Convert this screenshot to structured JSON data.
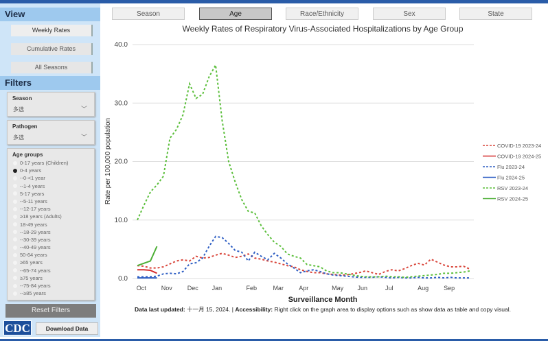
{
  "sidebar": {
    "view_title": "View",
    "view_buttons": [
      "Weekly Rates",
      "Cumulative Rates",
      "All Seasons"
    ],
    "filters_title": "Filters",
    "season": {
      "label": "Season",
      "value": "多选"
    },
    "pathogen": {
      "label": "Pathogen",
      "value": "多选"
    },
    "age_groups": {
      "label": "Age groups",
      "selected": "0-4 years",
      "options": [
        "0-17 years (Children)",
        "0-4 years",
        "--0-<1 year",
        "--1-4 years",
        "5-17 years",
        "--5-11 years",
        "--12-17 years",
        "≥18 years (Adults)",
        "18-49 years",
        "--18-29 years",
        "--30-39 years",
        "--40-49 years",
        "50-64 years",
        "≥65 years",
        "--65-74 years",
        "≥75 years",
        "--75-84 years",
        "--≥85 years"
      ]
    },
    "reset_label": "Reset Filters",
    "logo_text": "CDC",
    "download_label": "Download Data"
  },
  "tabs": [
    "Season",
    "Age",
    "Race/Ethnicity",
    "Sex",
    "State"
  ],
  "active_tab": "Age",
  "footer": {
    "updated_label": "Data last updated:",
    "updated_value": "十一月 15, 2024.",
    "sep": " | ",
    "access_label": "Accessibility:",
    "access_text": "Right click on the graph area to display options such as show data as table and copy visual."
  },
  "chart_data": {
    "type": "line",
    "title": "Weekly Rates of Respiratory Virus-Associated Hospitalizations by Age Group",
    "xlabel": "Surveillance Month",
    "ylabel": "Rate per 100,000 population",
    "ylim": [
      0,
      40
    ],
    "yticks": [
      "0.0",
      "10.0",
      "20.0",
      "30.0",
      "40.0"
    ],
    "xticks": [
      "Oct",
      "Nov",
      "Dec",
      "Jan",
      "Feb",
      "Mar",
      "Apr",
      "May",
      "Jun",
      "Jul",
      "Aug",
      "Sep"
    ],
    "grid": true,
    "legend_position": "right",
    "series": [
      {
        "name": "COVID-19 2023-24",
        "color": "#d9453a",
        "dashed": true,
        "values": [
          2.2,
          2.1,
          1.8,
          1.8,
          2.0,
          2.5,
          3.0,
          3.2,
          3.0,
          3.8,
          3.5,
          3.6,
          4.0,
          4.3,
          4.0,
          3.6,
          3.8,
          4.2,
          3.5,
          3.3,
          3.0,
          2.8,
          2.5,
          2.2,
          2.0,
          1.5,
          1.2,
          1.0,
          1.0,
          0.8,
          0.7,
          0.6,
          0.6,
          0.8,
          1.0,
          1.3,
          1.0,
          0.7,
          1.2,
          1.5,
          1.3,
          1.7,
          2.2,
          2.6,
          2.3,
          3.3,
          2.8,
          2.3,
          2.0,
          2.0,
          2.1,
          1.6
        ]
      },
      {
        "name": "COVID-19 2024-25",
        "color": "#d42a2a",
        "dashed": false,
        "values": [
          1.5,
          1.5,
          1.4,
          0.9
        ]
      },
      {
        "name": "Flu 2023-24",
        "color": "#2f5fc4",
        "dashed": true,
        "values": [
          0.3,
          0.3,
          0.3,
          0.4,
          0.8,
          0.9,
          0.8,
          1.2,
          2.5,
          2.7,
          3.5,
          5.5,
          7.2,
          7.0,
          6.0,
          4.8,
          4.5,
          3.0,
          4.5,
          3.8,
          3.2,
          4.3,
          3.5,
          2.5,
          1.8,
          1.0,
          1.3,
          1.5,
          1.2,
          0.8,
          0.6,
          0.5,
          0.4,
          0.3,
          0.2,
          0.2,
          0.2,
          0.3,
          0.2,
          0.1,
          0.2,
          0.1,
          0.1,
          0.2,
          0.1,
          0.1,
          0.2,
          0.1,
          0.2,
          0.1,
          0.1,
          0.1
        ]
      },
      {
        "name": "Flu 2024-25",
        "color": "#2f5fc4",
        "dashed": false,
        "values": [
          0.1,
          0.1,
          0.1,
          0.1
        ]
      },
      {
        "name": "RSV 2023-24",
        "color": "#5cbf3c",
        "dashed": true,
        "values": [
          10,
          12.5,
          14.8,
          16,
          17.5,
          24,
          25.5,
          28,
          33.3,
          30.8,
          31.5,
          34.5,
          36.5,
          27,
          20,
          16.5,
          13.5,
          11.5,
          11.2,
          9,
          7.5,
          6.2,
          5.5,
          4.2,
          3.8,
          3.5,
          2.4,
          2.2,
          2,
          1.3,
          1,
          1,
          0.8,
          0.6,
          0.4,
          0.3,
          0.3,
          0.3,
          0.4,
          0.3,
          0.3,
          0.2,
          0.3,
          0.4,
          0.5,
          0.6,
          0.7,
          0.9,
          0.9,
          1.0,
          1.1,
          1.3
        ]
      },
      {
        "name": "RSV 2024-25",
        "color": "#4caf35",
        "dashed": false,
        "values": [
          2.2,
          2.6,
          3.0,
          5.5
        ]
      }
    ]
  }
}
